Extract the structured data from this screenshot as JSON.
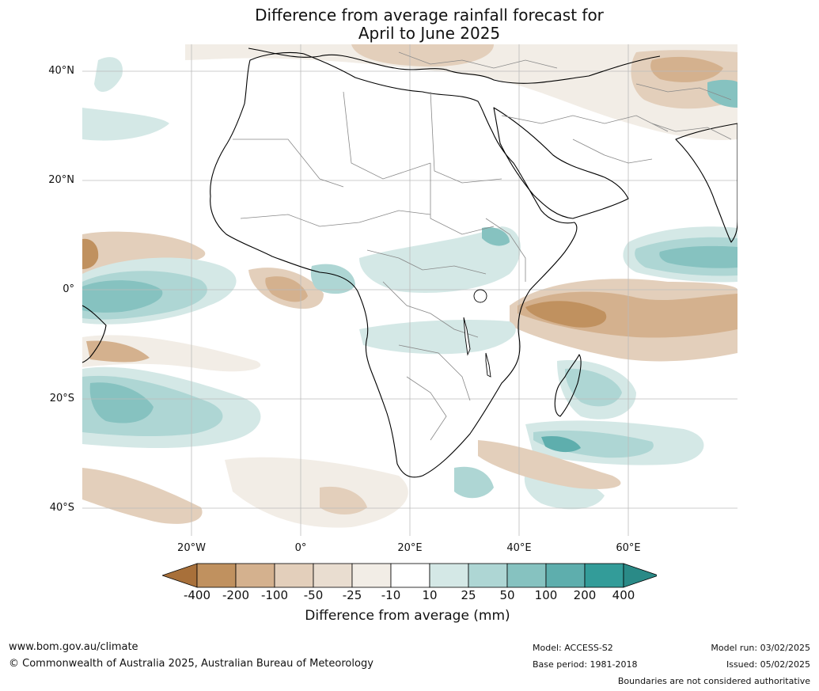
{
  "title_line1": "Difference from average rainfall forecast for",
  "title_line2": "April to June 2025",
  "map": {
    "lat_labels": [
      "40°N",
      "20°N",
      "0°",
      "20°S",
      "40°S"
    ],
    "lat_values": [
      40,
      20,
      0,
      -20,
      -40
    ],
    "lon_labels": [
      "20°W",
      "0°",
      "20°E",
      "40°E",
      "60°E"
    ],
    "lon_values": [
      -20,
      0,
      20,
      40,
      60
    ],
    "extent": {
      "lon_min": -40,
      "lon_max": 80,
      "lat_min": -45,
      "lat_max": 45
    },
    "regions": [
      {
        "name": "west-africa-coast-dry",
        "class": "-100",
        "lon": -38,
        "lat": 6
      },
      {
        "name": "atlantic-equatorial-wet",
        "class": "100",
        "lon": -33,
        "lat": -2
      },
      {
        "name": "gulf-of-guinea-dry",
        "class": "-50",
        "lon": -3,
        "lat": 2
      },
      {
        "name": "congo-basin-wet",
        "class": "50",
        "lon": 17,
        "lat": 3
      },
      {
        "name": "east-africa-indian-ocean-dry",
        "class": "-100",
        "lon": 53,
        "lat": -5
      },
      {
        "name": "north-indian-ocean-wet",
        "class": "100",
        "lon": 72,
        "lat": 5
      },
      {
        "name": "madagascar-east-wet",
        "class": "50",
        "lon": 53,
        "lat": -17
      },
      {
        "name": "south-atlantic-wet",
        "class": "100",
        "lon": -30,
        "lat": -22
      },
      {
        "name": "southern-ocean-dry",
        "class": "-50",
        "lon": -32,
        "lat": -37
      },
      {
        "name": "mediterranean-dry",
        "class": "-25",
        "lon": 20,
        "lat": 42
      },
      {
        "name": "middle-east-dry",
        "class": "-50",
        "lon": 65,
        "lat": 38
      },
      {
        "name": "south-indian-wet",
        "class": "100",
        "lon": 44,
        "lat": -30
      }
    ]
  },
  "colorbar": {
    "title": "Difference from average (mm)",
    "ticks": [
      "-400",
      "-200",
      "-100",
      "-50",
      "-25",
      "-10",
      "10",
      "25",
      "50",
      "100",
      "200",
      "400"
    ],
    "colors": [
      "#a8703a",
      "#c0915f",
      "#d4b18e",
      "#e3cfbb",
      "#f2ede6",
      "#ffffff",
      "#d4e8e6",
      "#aed6d4",
      "#86c2c0",
      "#5eaead",
      "#339c99",
      "#2a8a87"
    ]
  },
  "footer": {
    "site": "www.bom.gov.au/climate",
    "copyright": "© Commonwealth of Australia 2025, Australian Bureau of Meteorology",
    "model": "Model: ACCESS-S2",
    "base_period": "Base period: 1981-2018",
    "model_run": "Model run: 03/02/2025",
    "issued": "Issued: 05/02/2025",
    "disclaimer": "Boundaries are not considered authoritative"
  }
}
